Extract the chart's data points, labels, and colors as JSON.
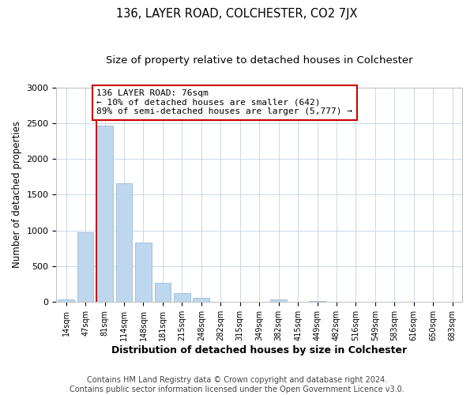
{
  "title": "136, LAYER ROAD, COLCHESTER, CO2 7JX",
  "subtitle": "Size of property relative to detached houses in Colchester",
  "xlabel": "Distribution of detached houses by size in Colchester",
  "ylabel": "Number of detached properties",
  "categories": [
    "14sqm",
    "47sqm",
    "81sqm",
    "114sqm",
    "148sqm",
    "181sqm",
    "215sqm",
    "248sqm",
    "282sqm",
    "315sqm",
    "349sqm",
    "382sqm",
    "415sqm",
    "449sqm",
    "482sqm",
    "516sqm",
    "549sqm",
    "583sqm",
    "616sqm",
    "650sqm",
    "683sqm"
  ],
  "values": [
    40,
    980,
    2460,
    1660,
    830,
    270,
    120,
    55,
    8,
    8,
    4,
    40,
    0,
    18,
    0,
    0,
    0,
    0,
    0,
    0,
    0
  ],
  "bar_color": "#bdd7ee",
  "bar_edgecolor": "#9dbbd8",
  "vline_color": "#cc0000",
  "vline_bar_index": 2,
  "annotation_text": "136 LAYER ROAD: 76sqm\n← 10% of detached houses are smaller (642)\n89% of semi-detached houses are larger (5,777) →",
  "annotation_box_edgecolor": "#cc0000",
  "annotation_box_facecolor": "#ffffff",
  "ylim": [
    0,
    3000
  ],
  "yticks": [
    0,
    500,
    1000,
    1500,
    2000,
    2500,
    3000
  ],
  "footer_text": "Contains HM Land Registry data © Crown copyright and database right 2024.\nContains public sector information licensed under the Open Government Licence v3.0.",
  "title_fontsize": 10.5,
  "subtitle_fontsize": 9.5,
  "xlabel_fontsize": 9,
  "ylabel_fontsize": 8.5,
  "annotation_fontsize": 8,
  "footer_fontsize": 7,
  "bg_color": "#ffffff",
  "plot_bg_color": "#ffffff",
  "grid_color": "#c8d8e8"
}
